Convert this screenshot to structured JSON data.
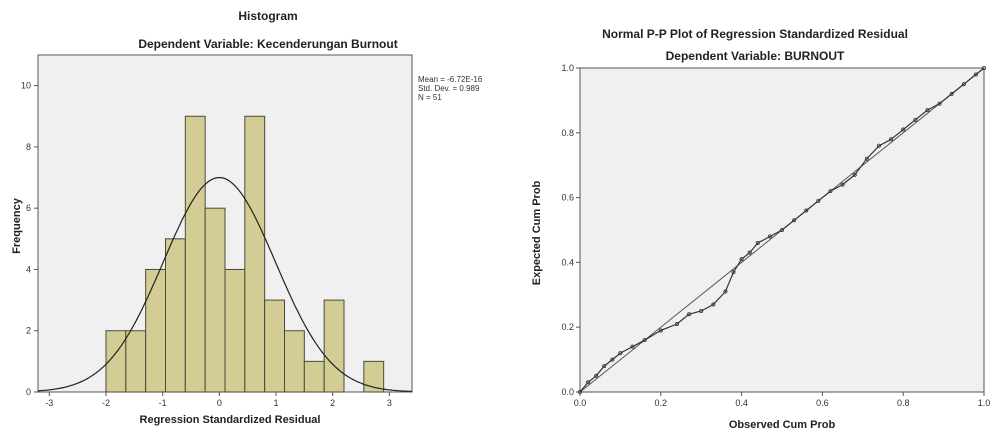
{
  "chart_data": [
    {
      "type": "bar",
      "title": "Histogram",
      "subtitle": "Dependent Variable: Kecenderungan Burnout",
      "xlabel": "Regression Standardized Residual",
      "ylabel": "Frequency",
      "xlim": [
        -3.2,
        3.4
      ],
      "ylim": [
        0,
        11
      ],
      "x_ticks": [
        -3,
        -2,
        -1,
        0,
        1,
        2,
        3
      ],
      "y_ticks": [
        0,
        2,
        4,
        6,
        8,
        10
      ],
      "bin_width": 0.35,
      "bins": [
        {
          "x0": -2.0,
          "x1": -1.65,
          "count": 2
        },
        {
          "x0": -1.65,
          "x1": -1.3,
          "count": 2
        },
        {
          "x0": -1.3,
          "x1": -0.95,
          "count": 4
        },
        {
          "x0": -0.95,
          "x1": -0.6,
          "count": 5
        },
        {
          "x0": -0.6,
          "x1": -0.25,
          "count": 9
        },
        {
          "x0": -0.25,
          "x1": 0.1,
          "count": 6
        },
        {
          "x0": 0.1,
          "x1": 0.45,
          "count": 4
        },
        {
          "x0": 0.45,
          "x1": 0.8,
          "count": 9
        },
        {
          "x0": 0.8,
          "x1": 1.15,
          "count": 3
        },
        {
          "x0": 1.15,
          "x1": 1.5,
          "count": 2
        },
        {
          "x0": 1.5,
          "x1": 1.85,
          "count": 1
        },
        {
          "x0": 1.85,
          "x1": 2.2,
          "count": 3
        },
        {
          "x0": 2.2,
          "x1": 2.55,
          "count": 0
        },
        {
          "x0": 2.55,
          "x1": 2.9,
          "count": 1
        }
      ],
      "normal_curve": {
        "mean": 0,
        "sd": 0.989,
        "peak": 7
      },
      "stats_text": [
        "Mean = -6.72E-16",
        "Std. Dev. = 0.989",
        "N = 51"
      ],
      "bar_color": "#d4cc95",
      "bar_edge": "#4a4a3a",
      "plot_bg": "#f0f0f0",
      "legend": "top-right"
    },
    {
      "type": "line",
      "title": "Normal P-P Plot of Regression Standardized Residual",
      "subtitle": "Dependent Variable: BURNOUT",
      "xlabel": "Observed Cum Prob",
      "ylabel": "Expected Cum Prob",
      "xlim": [
        0,
        1
      ],
      "ylim": [
        0,
        1
      ],
      "x_ticks": [
        0.0,
        0.2,
        0.4,
        0.6,
        0.8,
        1.0
      ],
      "y_ticks": [
        0.0,
        0.2,
        0.4,
        0.6,
        0.8,
        1.0
      ],
      "reference_line": [
        [
          0,
          0
        ],
        [
          1,
          1
        ]
      ],
      "series": [
        {
          "x": [
            0.0,
            0.02,
            0.04,
            0.06,
            0.08,
            0.1,
            0.13,
            0.16,
            0.2,
            0.24,
            0.27,
            0.3,
            0.33,
            0.36,
            0.38,
            0.4,
            0.42,
            0.44,
            0.47,
            0.5,
            0.53,
            0.56,
            0.59,
            0.62,
            0.65,
            0.68,
            0.71,
            0.74,
            0.77,
            0.8,
            0.83,
            0.86,
            0.89,
            0.92,
            0.95,
            0.98,
            1.0
          ],
          "y": [
            0.0,
            0.03,
            0.05,
            0.08,
            0.1,
            0.12,
            0.14,
            0.16,
            0.19,
            0.21,
            0.24,
            0.25,
            0.27,
            0.31,
            0.37,
            0.41,
            0.43,
            0.46,
            0.48,
            0.5,
            0.53,
            0.56,
            0.59,
            0.62,
            0.64,
            0.67,
            0.72,
            0.76,
            0.78,
            0.81,
            0.84,
            0.87,
            0.89,
            0.92,
            0.95,
            0.98,
            1.0
          ]
        }
      ],
      "plot_bg": "#f0f0f0",
      "line_color": "#333333"
    }
  ]
}
